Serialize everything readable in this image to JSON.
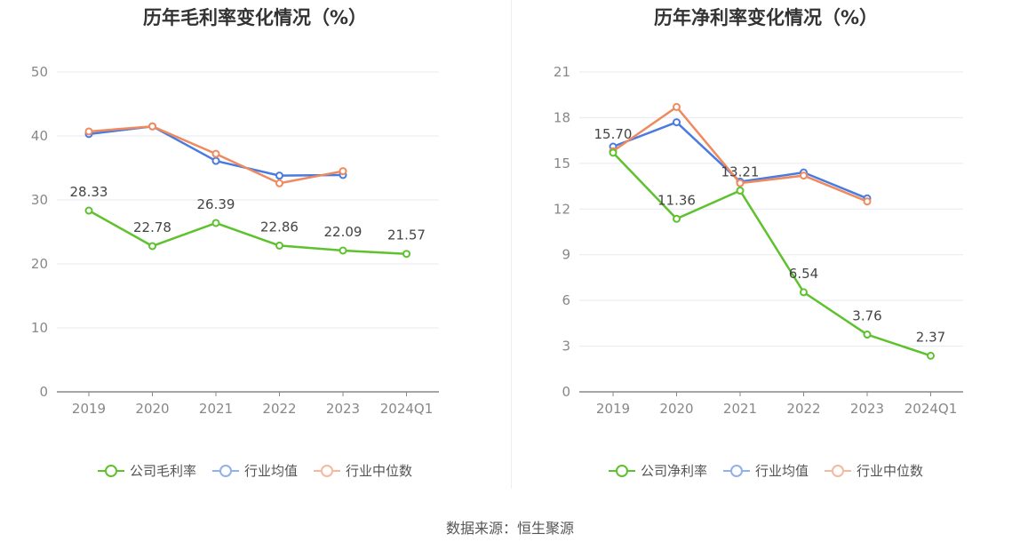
{
  "source_text": "数据来源：恒生聚源",
  "chart_data": [
    {
      "type": "line",
      "title": "历年毛利率变化情况（%）",
      "categories": [
        "2019",
        "2020",
        "2021",
        "2022",
        "2023",
        "2024Q1"
      ],
      "ylim": [
        0,
        50
      ],
      "yticks": [
        0,
        10,
        20,
        30,
        40,
        50
      ],
      "grid": true,
      "legend_position": "bottom",
      "series": [
        {
          "name": "公司毛利率",
          "color": "#5ec22e",
          "values": [
            28.33,
            22.78,
            26.39,
            22.86,
            22.09,
            21.57
          ],
          "labels": [
            "28.33",
            "22.78",
            "26.39",
            "22.86",
            "22.09",
            "21.57"
          ]
        },
        {
          "name": "行业均值",
          "color": "#4a7be0",
          "values": [
            40.3,
            41.5,
            36.1,
            33.8,
            33.9,
            null
          ],
          "labels": []
        },
        {
          "name": "行业中位数",
          "color": "#ef8a5f",
          "values": [
            40.7,
            41.5,
            37.2,
            32.6,
            34.5,
            null
          ],
          "labels": []
        }
      ]
    },
    {
      "type": "line",
      "title": "历年净利率变化情况（%）",
      "categories": [
        "2019",
        "2020",
        "2021",
        "2022",
        "2023",
        "2024Q1"
      ],
      "ylim": [
        0,
        21
      ],
      "yticks": [
        0,
        3,
        6,
        9,
        12,
        15,
        18,
        21
      ],
      "grid": true,
      "legend_position": "bottom",
      "series": [
        {
          "name": "公司净利率",
          "color": "#5ec22e",
          "values": [
            15.7,
            11.36,
            13.21,
            6.54,
            3.76,
            2.37
          ],
          "labels": [
            "15.70",
            "11.36",
            "13.21",
            "6.54",
            "3.76",
            "2.37"
          ]
        },
        {
          "name": "行业均值",
          "color": "#4a7be0",
          "values": [
            16.1,
            17.7,
            13.8,
            14.4,
            12.7,
            null
          ],
          "labels": []
        },
        {
          "name": "行业中位数",
          "color": "#ef8a5f",
          "values": [
            15.8,
            18.7,
            13.7,
            14.2,
            12.5,
            null
          ],
          "labels": []
        }
      ]
    }
  ]
}
